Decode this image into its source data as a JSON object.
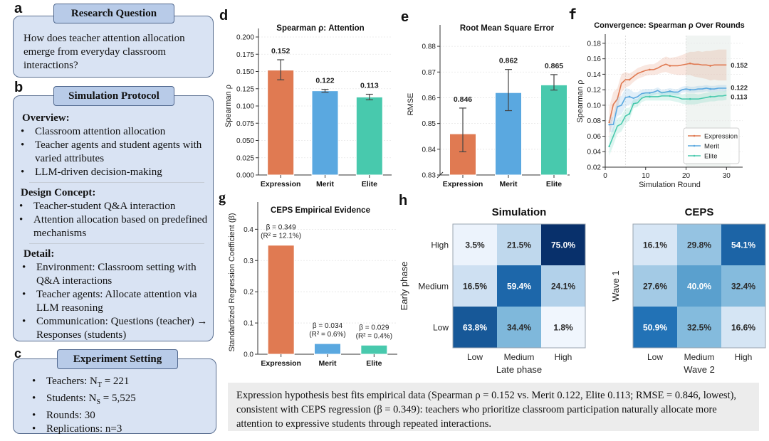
{
  "panels": {
    "a": {
      "letter": "a",
      "title": "Research Question",
      "text": "How does teacher attention allocation emerge from everyday classroom interactions?"
    },
    "b": {
      "letter": "b",
      "title": "Simulation Protocol",
      "sections": [
        {
          "heading": "Overview:",
          "items": [
            "Classroom attention allocation",
            "Teacher agents and student agents with varied attributes",
            "LLM-driven decision-making"
          ]
        },
        {
          "heading": "Design Concept:",
          "items": [
            "Teacher-student Q&A interaction",
            "Attention allocation based on predefined mechanisms"
          ]
        },
        {
          "heading": "Detail:",
          "items": [
            "Environment: Classroom setting with Q&A interactions",
            "Teacher agents: Allocate attention via LLM reasoning",
            "Communication: Questions (teacher) → Responses (students)"
          ]
        }
      ]
    },
    "c": {
      "letter": "c",
      "title": "Experiment Setting",
      "items": [
        {
          "label": "Teachers: N",
          "sub": "T",
          "value": " = 221"
        },
        {
          "label": "Students: N",
          "sub": "S",
          "value": " = 5,525"
        },
        {
          "label": "Rounds: 30",
          "sub": "",
          "value": ""
        },
        {
          "label": "Replications: n=3",
          "sub": "",
          "value": ""
        }
      ]
    },
    "d_letter": "d",
    "e_letter": "e",
    "f_letter": "f",
    "g_letter": "g",
    "h_letter": "h"
  },
  "colors": {
    "expression": "#e07a52",
    "merit": "#5aa8e0",
    "elite": "#48c9ad",
    "box_fill": "#d9e3f3",
    "box_title_fill": "#b8cbe8"
  },
  "chart_data": [
    {
      "id": "d",
      "type": "bar",
      "title": "Spearman ρ: Attention",
      "xlabel": "",
      "ylabel": "Spearman ρ",
      "categories": [
        "Expression",
        "Merit",
        "Elite"
      ],
      "values": [
        0.152,
        0.122,
        0.113
      ],
      "value_labels": [
        "0.152",
        "0.122",
        "0.113"
      ],
      "error_low": [
        0.138,
        0.12,
        0.109
      ],
      "error_high": [
        0.167,
        0.124,
        0.117
      ],
      "ylim": [
        0.0,
        0.2
      ],
      "yticks": [
        0.0,
        0.025,
        0.05,
        0.075,
        0.1,
        0.125,
        0.15,
        0.175,
        0.2
      ],
      "ytick_labels": [
        "0.000",
        "0.025",
        "0.050",
        "0.075",
        "0.100",
        "0.125",
        "0.150",
        "0.175",
        "0.200"
      ],
      "grid": true
    },
    {
      "id": "e",
      "type": "bar",
      "title": "Root Mean Square Error",
      "xlabel": "",
      "ylabel": "RMSE",
      "categories": [
        "Expression",
        "Merit",
        "Elite"
      ],
      "values": [
        0.846,
        0.862,
        0.865
      ],
      "value_labels": [
        "0.846",
        "0.862",
        "0.865"
      ],
      "error_low": [
        0.839,
        0.855,
        0.863
      ],
      "error_high": [
        0.856,
        0.871,
        0.869
      ],
      "ylim": [
        0.83,
        0.885
      ],
      "yticks": [
        0.83,
        0.84,
        0.85,
        0.86,
        0.87,
        0.88
      ],
      "ytick_labels": [
        "0.83",
        "0.84",
        "0.85",
        "0.86",
        "0.87",
        "0.88"
      ],
      "axis_break": true,
      "grid": true
    },
    {
      "id": "f",
      "type": "line",
      "title": "Convergence: Spearman ρ Over Rounds",
      "xlabel": "Simulation Round",
      "ylabel": "Spearman ρ",
      "xlim": [
        0,
        34
      ],
      "ylim": [
        0.02,
        0.19
      ],
      "xticks": [
        0,
        10,
        20,
        30
      ],
      "yticks": [
        0.02,
        0.04,
        0.06,
        0.08,
        0.1,
        0.12,
        0.14,
        0.16,
        0.18
      ],
      "ytick_labels": [
        "0.02",
        "0.04",
        "0.06",
        "0.08",
        "0.10",
        "0.12",
        "0.14",
        "0.16",
        "0.18"
      ],
      "vlines": [
        5,
        20
      ],
      "shaded_region": [
        20,
        31
      ],
      "legend": "bottom-right",
      "grid": true,
      "x": [
        1,
        2,
        3,
        4,
        5,
        6,
        7,
        8,
        9,
        10,
        11,
        12,
        13,
        14,
        15,
        16,
        17,
        18,
        19,
        20,
        21,
        22,
        23,
        24,
        25,
        26,
        27,
        28,
        29,
        30
      ],
      "series": [
        {
          "name": "Expression",
          "end_label": "0.152",
          "values": [
            0.078,
            0.101,
            0.108,
            0.128,
            0.133,
            0.133,
            0.137,
            0.141,
            0.143,
            0.145,
            0.146,
            0.146,
            0.148,
            0.151,
            0.153,
            0.151,
            0.151,
            0.151,
            0.152,
            0.153,
            0.154,
            0.153,
            0.153,
            0.152,
            0.152,
            0.151,
            0.152,
            0.152,
            0.152,
            0.152
          ],
          "band": [
            0.02,
            0.016,
            0.014,
            0.012,
            0.01,
            0.008,
            0.007,
            0.007,
            0.007,
            0.007,
            0.007,
            0.007,
            0.008,
            0.009,
            0.01,
            0.01,
            0.011,
            0.012,
            0.013,
            0.014,
            0.015,
            0.016,
            0.017,
            0.017,
            0.018,
            0.019,
            0.019,
            0.02,
            0.02,
            0.02
          ]
        },
        {
          "name": "Merit",
          "end_label": "0.122",
          "values": [
            0.075,
            0.075,
            0.098,
            0.1,
            0.11,
            0.111,
            0.109,
            0.111,
            0.115,
            0.116,
            0.116,
            0.117,
            0.119,
            0.116,
            0.117,
            0.118,
            0.117,
            0.117,
            0.12,
            0.121,
            0.12,
            0.12,
            0.121,
            0.121,
            0.122,
            0.121,
            0.121,
            0.122,
            0.122,
            0.122
          ],
          "band": [
            0.01,
            0.01,
            0.012,
            0.012,
            0.012,
            0.01,
            0.008,
            0.006,
            0.005,
            0.005,
            0.005,
            0.004,
            0.004,
            0.004,
            0.004,
            0.004,
            0.004,
            0.004,
            0.004,
            0.004,
            0.004,
            0.004,
            0.004,
            0.004,
            0.004,
            0.004,
            0.004,
            0.004,
            0.004,
            0.004
          ]
        },
        {
          "name": "Elite",
          "end_label": "0.113",
          "values": [
            0.047,
            0.06,
            0.073,
            0.076,
            0.086,
            0.089,
            0.102,
            0.103,
            0.109,
            0.111,
            0.111,
            0.111,
            0.111,
            0.112,
            0.112,
            0.112,
            0.111,
            0.11,
            0.108,
            0.108,
            0.108,
            0.108,
            0.108,
            0.109,
            0.11,
            0.111,
            0.111,
            0.112,
            0.112,
            0.113
          ],
          "band": [
            0.012,
            0.012,
            0.01,
            0.01,
            0.01,
            0.008,
            0.006,
            0.005,
            0.005,
            0.005,
            0.005,
            0.005,
            0.005,
            0.006,
            0.006,
            0.006,
            0.006,
            0.006,
            0.006,
            0.007,
            0.007,
            0.007,
            0.006,
            0.006,
            0.006,
            0.006,
            0.006,
            0.006,
            0.006,
            0.006
          ]
        }
      ]
    },
    {
      "id": "g",
      "type": "bar",
      "title": "CEPS Empirical Evidence",
      "xlabel": "",
      "ylabel": "Standardized Regression Coefficient (β)",
      "categories": [
        "Expression",
        "Merit",
        "Elite"
      ],
      "values": [
        0.349,
        0.034,
        0.029
      ],
      "value_labels": [
        "β = 0.349",
        "β = 0.034",
        "β = 0.029"
      ],
      "sub_labels": [
        "(R² = 12.1%)",
        "(R² = 0.6%)",
        "(R² = 0.4%)"
      ],
      "ylim": [
        0.0,
        0.46
      ],
      "yticks": [
        0.0,
        0.1,
        0.2,
        0.3,
        0.4
      ],
      "ytick_labels": [
        "0.0",
        "0.1",
        "0.2",
        "0.3",
        "0.4"
      ],
      "grid": true
    },
    {
      "id": "h-sim",
      "type": "heatmap",
      "title": "Simulation",
      "xlabel": "Late phase",
      "ylabel": "Early phase",
      "x_categories": [
        "Low",
        "Medium",
        "High"
      ],
      "y_categories": [
        "High",
        "Medium",
        "Low"
      ],
      "values": [
        [
          3.5,
          21.5,
          75.0
        ],
        [
          16.5,
          59.4,
          24.1
        ],
        [
          63.8,
          34.4,
          1.8
        ]
      ],
      "cell_labels": [
        [
          "3.5%",
          "21.5%",
          "75.0%"
        ],
        [
          "16.5%",
          "59.4%",
          "24.1%"
        ],
        [
          "63.8%",
          "34.4%",
          "1.8%"
        ]
      ],
      "colormap": "Blues"
    },
    {
      "id": "h-ceps",
      "type": "heatmap",
      "title": "CEPS",
      "xlabel": "Wave 2",
      "ylabel": "Wave 1",
      "x_categories": [
        "Low",
        "Medium",
        "High"
      ],
      "y_categories": [
        "High",
        "Medium",
        "Low"
      ],
      "values": [
        [
          16.1,
          29.8,
          54.1
        ],
        [
          27.6,
          40.0,
          32.4
        ],
        [
          50.9,
          32.5,
          16.6
        ]
      ],
      "cell_labels": [
        [
          "16.1%",
          "29.8%",
          "54.1%"
        ],
        [
          "27.6%",
          "40.0%",
          "32.4%"
        ],
        [
          "50.9%",
          "32.5%",
          "16.6%"
        ]
      ],
      "colormap": "Blues"
    }
  ],
  "caption": "Expression hypothesis best fits empirical data (Spearman ρ = 0.152 vs. Merit 0.122, Elite 0.113; RMSE = 0.846, lowest), consistent with CEPS regression (β = 0.349): teachers who prioritize classroom participation naturally allocate more attention to expressive students through repeated interactions."
}
